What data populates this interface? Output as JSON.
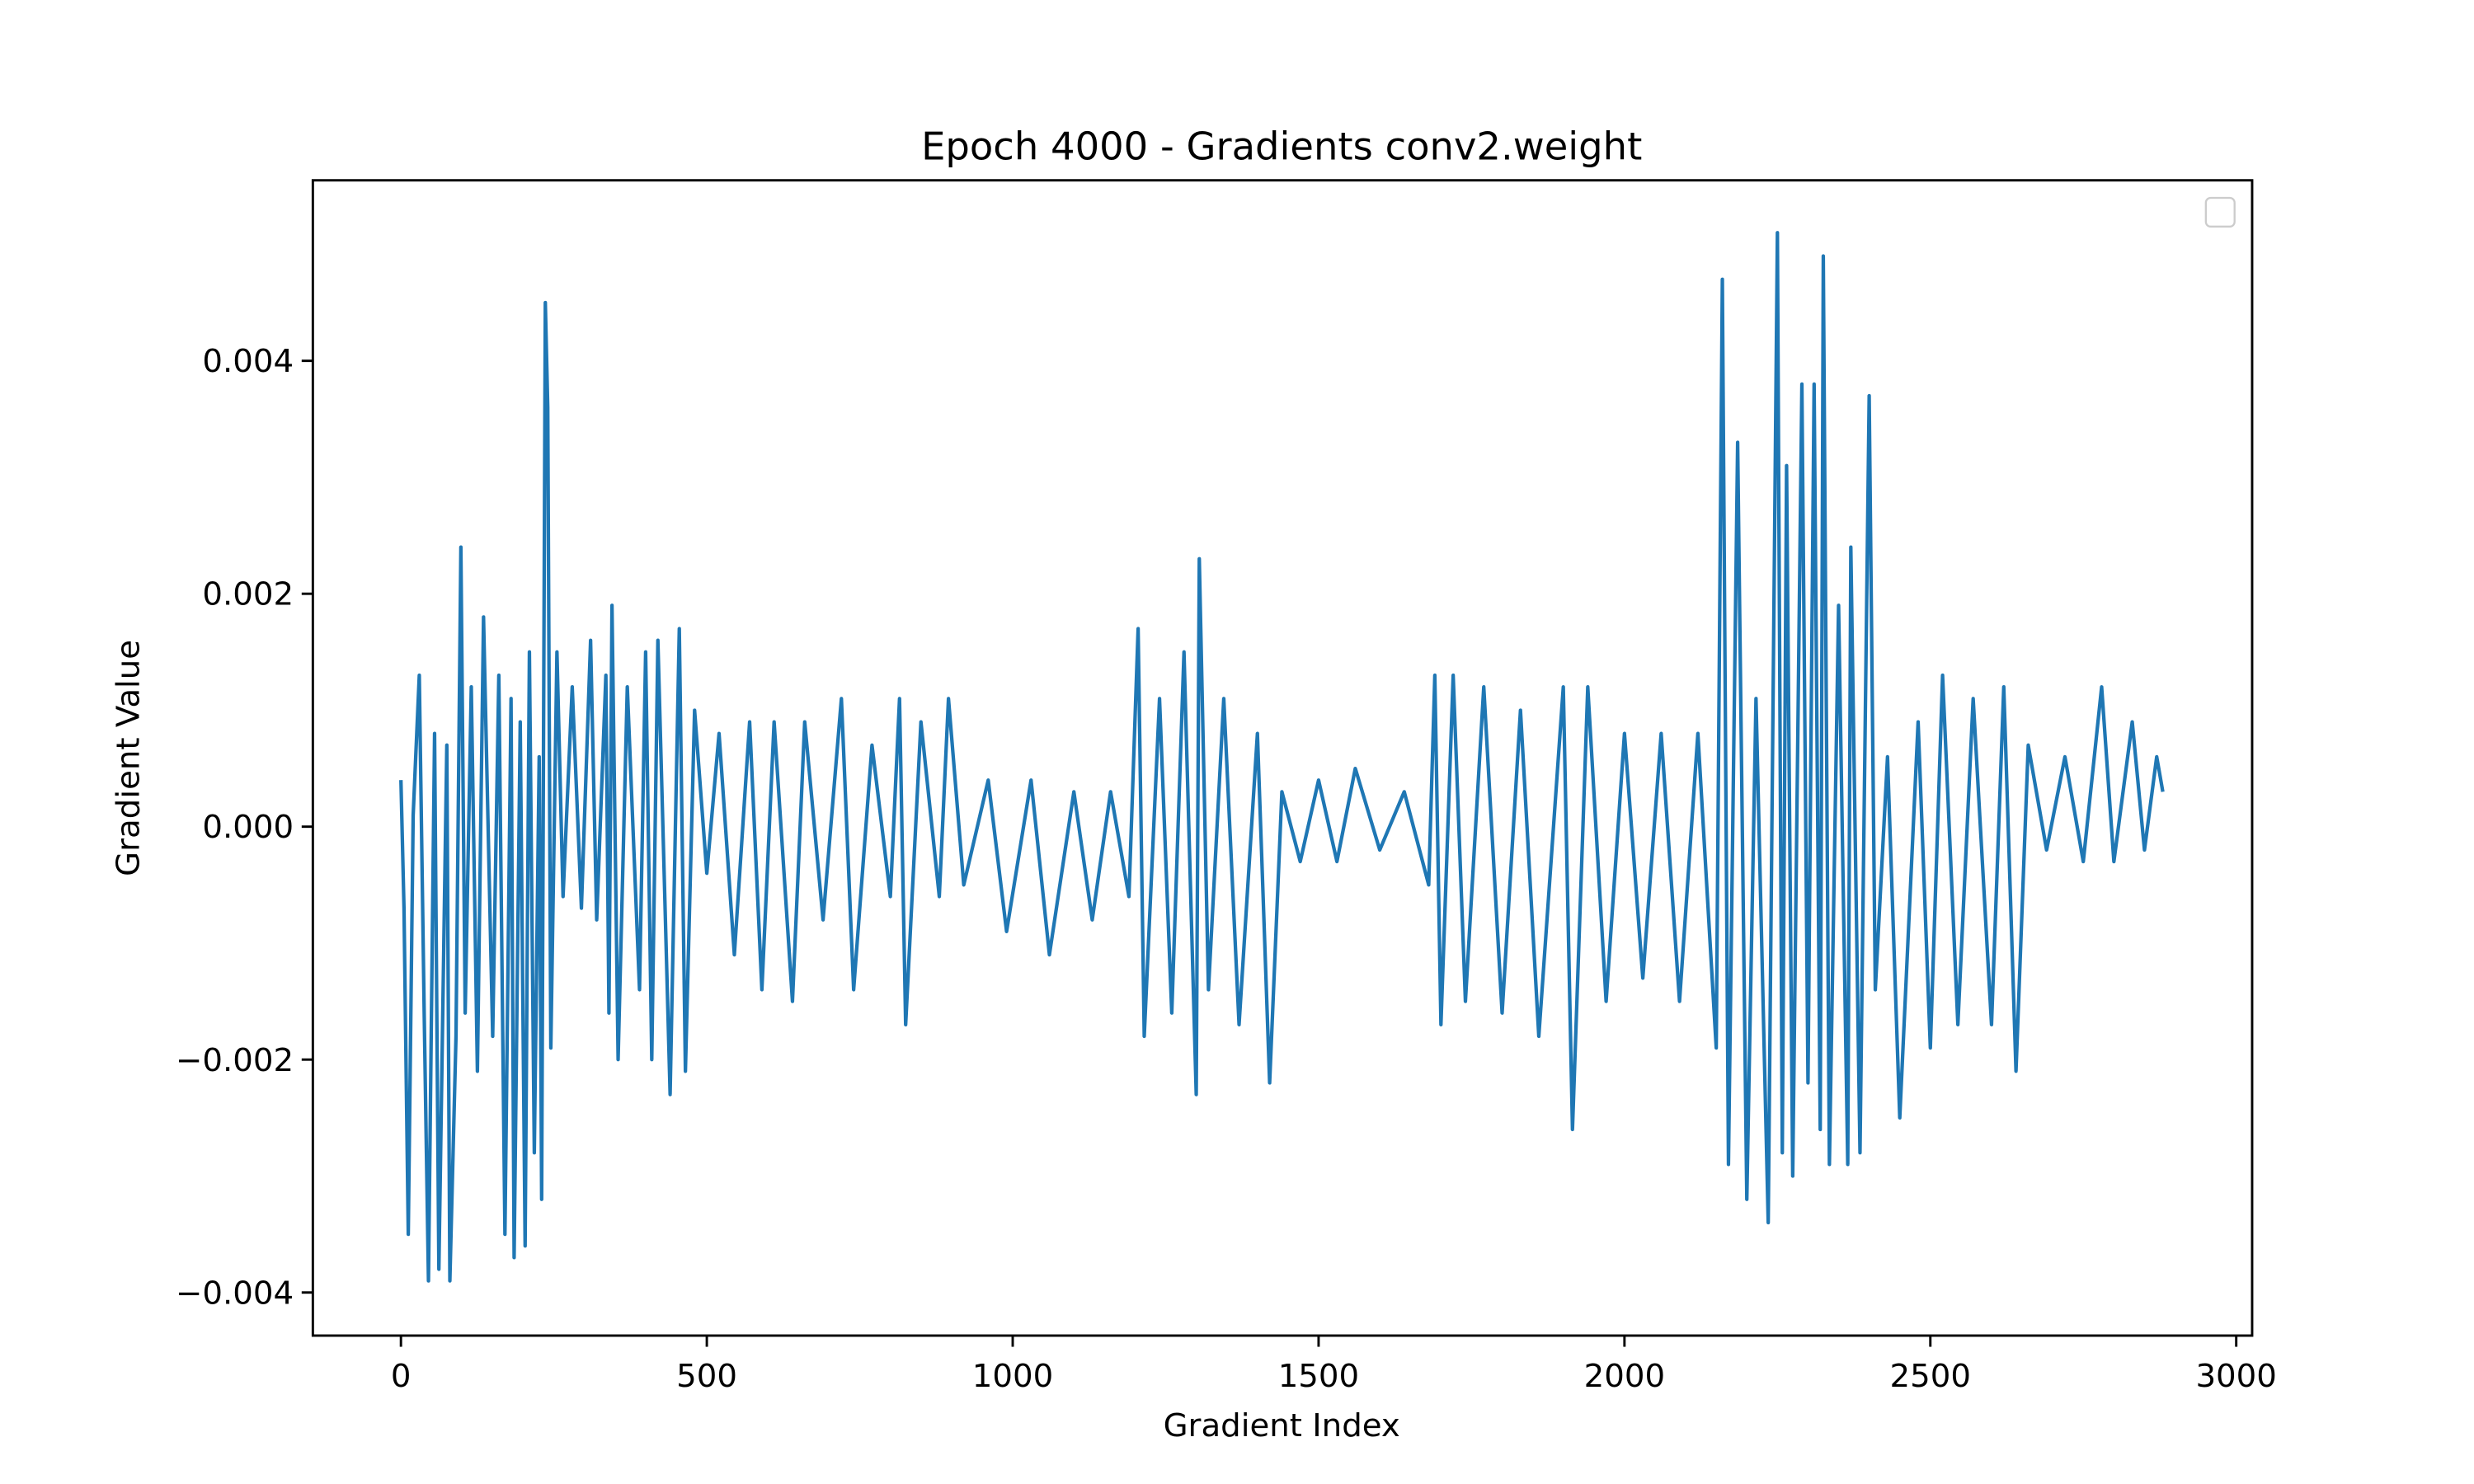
{
  "chart_data": {
    "type": "line",
    "title": "Epoch 4000 - Gradients conv2.weight",
    "xlabel": "Gradient Index",
    "ylabel": "Gradient Value",
    "legend": "upper right",
    "xlim": [
      -144,
      3026
    ],
    "xticks": [
      0,
      500,
      1000,
      1500,
      2000,
      2500,
      3000
    ],
    "ylim": [
      -0.00437,
      0.00555
    ],
    "yticks": [
      {
        "value": -0.004,
        "label": "−0.004"
      },
      {
        "value": -0.002,
        "label": "−0.002"
      },
      {
        "value": 0,
        "label": "0.000"
      },
      0.002,
      0.004
    ],
    "x": [
      0,
      5,
      12,
      20,
      30,
      38,
      45,
      55,
      62,
      75,
      80,
      90,
      98,
      105,
      115,
      125,
      135,
      150,
      160,
      170,
      180,
      185,
      195,
      203,
      210,
      218,
      226,
      230,
      236,
      240,
      245,
      255,
      265,
      280,
      295,
      310,
      320,
      335,
      340,
      345,
      355,
      370,
      390,
      400,
      410,
      420,
      440,
      455,
      465,
      480,
      500,
      520,
      545,
      570,
      590,
      610,
      640,
      660,
      690,
      720,
      740,
      770,
      800,
      815,
      825,
      850,
      880,
      895,
      920,
      960,
      990,
      1030,
      1060,
      1100,
      1130,
      1160,
      1190,
      1205,
      1215,
      1240,
      1260,
      1280,
      1300,
      1305,
      1320,
      1345,
      1370,
      1400,
      1420,
      1440,
      1470,
      1500,
      1530,
      1560,
      1600,
      1640,
      1680,
      1690,
      1700,
      1720,
      1740,
      1770,
      1800,
      1830,
      1860,
      1900,
      1915,
      1940,
      1970,
      2000,
      2030,
      2060,
      2090,
      2120,
      2150,
      2160,
      2170,
      2185,
      2200,
      2215,
      2235,
      2250,
      2258,
      2265,
      2275,
      2290,
      2300,
      2310,
      2320,
      2325,
      2335,
      2350,
      2365,
      2370,
      2385,
      2400,
      2410,
      2430,
      2450,
      2480,
      2500,
      2520,
      2545,
      2570,
      2600,
      2620,
      2640,
      2660,
      2690,
      2720,
      2750,
      2780,
      2800,
      2830,
      2850,
      2870,
      2880
    ],
    "series": [
      {
        "name": "conv2.weight",
        "color": "#1f77b4",
        "values": [
          0.0004,
          -0.0007,
          -0.0035,
          0.0001,
          0.0013,
          -0.0016,
          -0.0039,
          0.0008,
          -0.0038,
          0.0007,
          -0.0039,
          -0.0018,
          0.0024,
          -0.0016,
          0.0012,
          -0.0021,
          0.0018,
          -0.0018,
          0.0013,
          -0.0035,
          0.0011,
          -0.0037,
          0.0009,
          -0.0036,
          0.0015,
          -0.0028,
          0.0006,
          -0.0032,
          0.0045,
          0.0036,
          -0.0019,
          0.0015,
          -0.0006,
          0.0012,
          -0.0007,
          0.0016,
          -0.0008,
          0.0013,
          -0.0016,
          0.0019,
          -0.002,
          0.0012,
          -0.0014,
          0.0015,
          -0.002,
          0.0016,
          -0.0023,
          0.0017,
          -0.0021,
          0.001,
          -0.0004,
          0.0008,
          -0.0011,
          0.0009,
          -0.0014,
          0.0009,
          -0.0015,
          0.0009,
          -0.0008,
          0.0011,
          -0.0014,
          0.0007,
          -0.0006,
          0.0011,
          -0.0017,
          0.0009,
          -0.0006,
          0.0011,
          -0.0005,
          0.0004,
          -0.0009,
          0.0004,
          -0.0011,
          0.0003,
          -0.0008,
          0.0003,
          -0.0006,
          0.0017,
          -0.0018,
          0.0011,
          -0.0016,
          0.0015,
          -0.0023,
          0.0023,
          -0.0014,
          0.0011,
          -0.0017,
          0.0008,
          -0.0022,
          0.0003,
          -0.0003,
          0.0004,
          -0.0003,
          0.0005,
          -0.0002,
          0.0003,
          -0.0005,
          0.0013,
          -0.0017,
          0.0013,
          -0.0015,
          0.0012,
          -0.0016,
          0.001,
          -0.0018,
          0.0012,
          -0.0026,
          0.0012,
          -0.0015,
          0.0008,
          -0.0013,
          0.0008,
          -0.0015,
          0.0008,
          -0.0019,
          0.0047,
          -0.0029,
          0.0033,
          -0.0032,
          0.0011,
          -0.0034,
          0.0051,
          -0.0028,
          0.0031,
          -0.003,
          0.0038,
          -0.0022,
          0.0038,
          -0.0026,
          0.0049,
          -0.0029,
          0.0019,
          -0.0029,
          0.0024,
          -0.0028,
          0.0037,
          -0.0014,
          0.0006,
          -0.0025,
          0.0009,
          -0.0019,
          0.0013,
          -0.0017,
          0.0011,
          -0.0017,
          0.0012,
          -0.0021,
          0.0007,
          -0.0002,
          0.0006,
          -0.0003,
          0.0012,
          -0.0003,
          0.0009,
          -0.0002,
          0.0006,
          0.0003
        ]
      }
    ]
  }
}
